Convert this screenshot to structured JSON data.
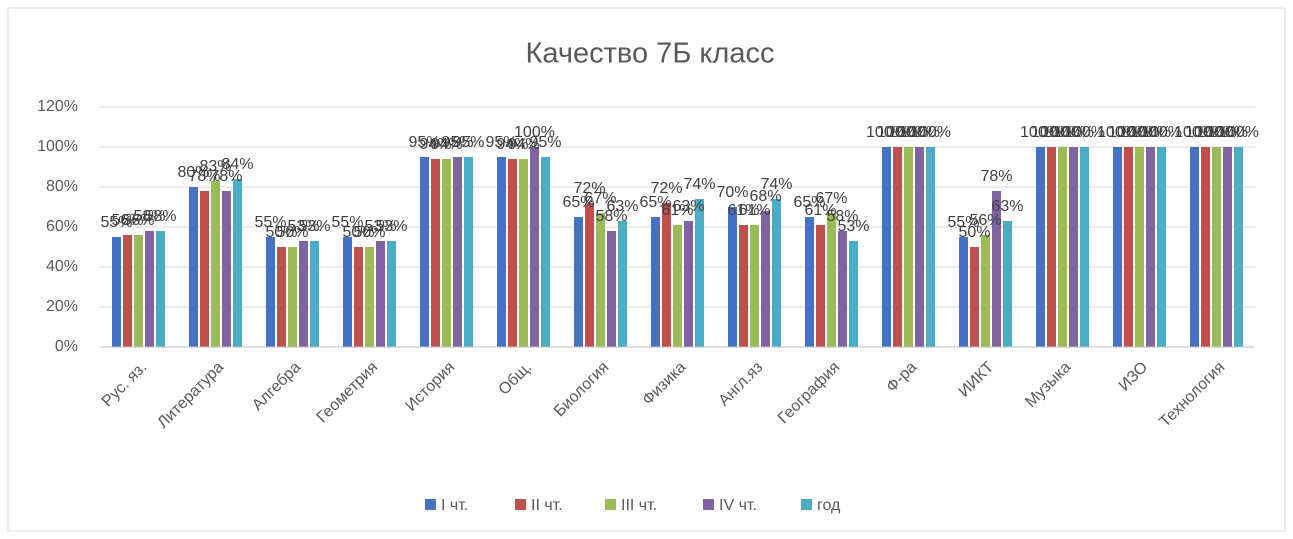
{
  "chart_data": {
    "type": "bar",
    "title": "Качество 7Б класс",
    "categories": [
      "Рус. яз.",
      "Литература",
      "Алгебра",
      "Геометрия",
      "История",
      "Общ.",
      "Биология",
      "Физика",
      "Англ.яз",
      "География",
      "Ф-ра",
      "ИИКТ",
      "Музыка",
      "ИЗО",
      "Технология"
    ],
    "series": [
      {
        "name": "I чт.",
        "color": "#4472c4",
        "values": [
          55,
          80,
          55,
          55,
          95,
          95,
          65,
          65,
          70,
          65,
          100,
          55,
          100,
          100,
          100
        ],
        "value_labels": [
          "55%",
          "80%",
          "55%",
          "55%",
          "95%",
          "95%",
          "65%",
          "65%",
          "70%",
          "65%",
          "100%",
          "55%",
          "100%",
          "100%",
          "100%"
        ]
      },
      {
        "name": "II чт.",
        "color": "#c0504d",
        "values": [
          56,
          78,
          50,
          50,
          94,
          94,
          72,
          72,
          61,
          61,
          100,
          50,
          100,
          100,
          100
        ],
        "value_labels": [
          "56%",
          "78%",
          "50%",
          "50%",
          "94%",
          "94%",
          "72%",
          "72%",
          "61%",
          "61%",
          "100%",
          "50%",
          "100%",
          "100%",
          "100%"
        ]
      },
      {
        "name": "III чт.",
        "color": "#9bbb59",
        "values": [
          56,
          83,
          50,
          50,
          94,
          94,
          67,
          61,
          61,
          67,
          100,
          56,
          100,
          100,
          100
        ],
        "value_labels": [
          "56%",
          "83%",
          "50%",
          "50%",
          "94%",
          "94%",
          "67%",
          "61%",
          "61%",
          "67%",
          "100%",
          "56%",
          "100%",
          "100%",
          "100%"
        ]
      },
      {
        "name": "IV чт.",
        "color": "#8064a2",
        "values": [
          58,
          78,
          53,
          53,
          95,
          100,
          58,
          63,
          68,
          58,
          100,
          78,
          100,
          100,
          100
        ],
        "value_labels": [
          "58%",
          "78%",
          "53%",
          "53%",
          "95%",
          "100%",
          "58%",
          "63%",
          "68%",
          "58%",
          "100%",
          "78%",
          "100%",
          "100%",
          "100%"
        ]
      },
      {
        "name": "год",
        "color": "#4bacc6",
        "values": [
          58,
          84,
          53,
          53,
          95,
          95,
          63,
          74,
          74,
          53,
          100,
          63,
          100,
          100,
          100
        ],
        "value_labels": [
          "58%",
          "84%",
          "53%",
          "53%",
          "95%",
          "95%",
          "63%",
          "74%",
          "74%",
          "53%",
          "100%",
          "63%",
          "100%",
          "100%",
          "100%"
        ]
      }
    ],
    "ylim": [
      0,
      120
    ],
    "yticks": [
      {
        "value": 0,
        "label": "0%"
      },
      {
        "value": 20,
        "label": "20%"
      },
      {
        "value": 40,
        "label": "40%"
      },
      {
        "value": 60,
        "label": "60%"
      },
      {
        "value": 80,
        "label": "80%"
      },
      {
        "value": 100,
        "label": "100%"
      },
      {
        "value": 120,
        "label": "120%"
      }
    ],
    "grid": true,
    "legend": "bottom"
  }
}
